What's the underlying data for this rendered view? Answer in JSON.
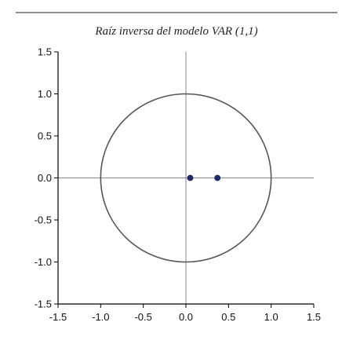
{
  "chart_data": {
    "type": "scatter",
    "title": "Raíz inversa del modelo VAR (1,1)",
    "xlabel": "",
    "ylabel": "",
    "xlim": [
      -1.5,
      1.5
    ],
    "ylim": [
      -1.5,
      1.5
    ],
    "xticks": [
      "-1.5",
      "-1.0",
      "-0.5",
      "0.0",
      "0.5",
      "1.0",
      "1.5"
    ],
    "xtick_values": [
      -1.5,
      -1.0,
      -0.5,
      0.0,
      0.5,
      1.0,
      1.5
    ],
    "yticks": [
      "1.5",
      "1.0",
      "0.5",
      "0.0",
      "-0.5",
      "-1.0",
      "-1.5"
    ],
    "ytick_values": [
      1.5,
      1.0,
      0.5,
      0.0,
      -0.5,
      -1.0,
      -1.5
    ],
    "grid": false,
    "reference_lines": {
      "x": 0,
      "y": 0
    },
    "unit_circle": {
      "radius": 1
    },
    "points": [
      {
        "x": 0.05,
        "y": 0.0
      },
      {
        "x": 0.37,
        "y": 0.0
      }
    ],
    "colors": {
      "points": "#1f2a6b",
      "circle": "#555555",
      "axes": "#000000",
      "reference": "#888888",
      "top_rule": "#222222"
    }
  }
}
